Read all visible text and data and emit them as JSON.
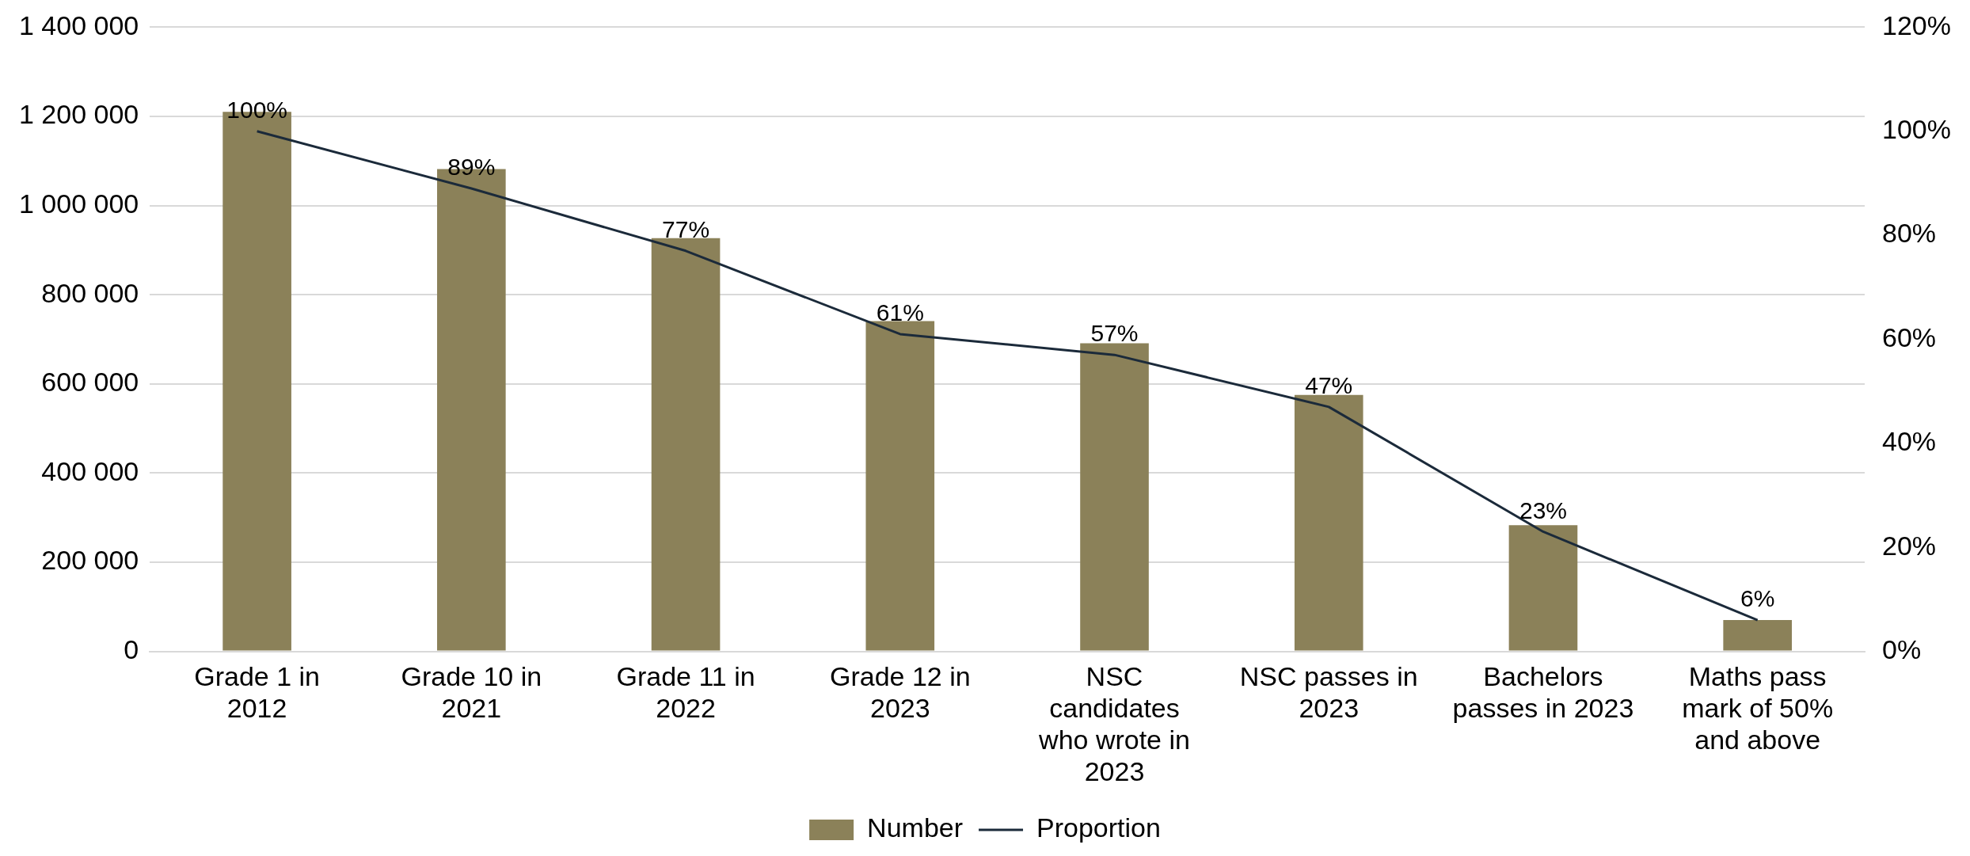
{
  "chart_data": {
    "type": "bar",
    "categories": [
      "Grade 1 in 2012",
      "Grade 10 in 2021",
      "Grade 11 in 2022",
      "Grade 12 in 2023",
      "NSC candidates who wrote in 2023",
      "NSC passes in 2023",
      "Bachelors passes in 2023",
      "Maths pass mark of 50% and above"
    ],
    "series": [
      {
        "name": "Number",
        "color": "#8b8159",
        "values": [
          1210000,
          1082000,
          927000,
          741000,
          691000,
          575000,
          283000,
          70000
        ]
      },
      {
        "name": "Proportion",
        "type": "line",
        "axis": "y2",
        "color": "#1b2a3a",
        "values": [
          100,
          89,
          77,
          61,
          57,
          47,
          23,
          6
        ],
        "value_labels": [
          "100%",
          "89%",
          "77%",
          "61%",
          "57%",
          "47%",
          "23%",
          "6%"
        ]
      }
    ],
    "ylim": [
      0,
      1400000
    ],
    "yticks": [
      {
        "value": 0,
        "label": "0"
      },
      {
        "value": 200000,
        "label": "200 000"
      },
      {
        "value": 400000,
        "label": "400 000"
      },
      {
        "value": 600000,
        "label": "600 000"
      },
      {
        "value": 800000,
        "label": "800 000"
      },
      {
        "value": 1000000,
        "label": "1 000 000"
      },
      {
        "value": 1200000,
        "label": "1 200 000"
      },
      {
        "value": 1400000,
        "label": "1 400 000"
      }
    ],
    "y2lim": [
      0,
      120
    ],
    "y2ticks": [
      {
        "value": 0,
        "label": "0%"
      },
      {
        "value": 20,
        "label": "20%"
      },
      {
        "value": 40,
        "label": "40%"
      },
      {
        "value": 60,
        "label": "60%"
      },
      {
        "value": 80,
        "label": "80%"
      },
      {
        "value": 100,
        "label": "100%"
      },
      {
        "value": 120,
        "label": "120%"
      }
    ],
    "grid": "y",
    "legend": "bottom",
    "marker": "none",
    "line_style": "solid"
  }
}
